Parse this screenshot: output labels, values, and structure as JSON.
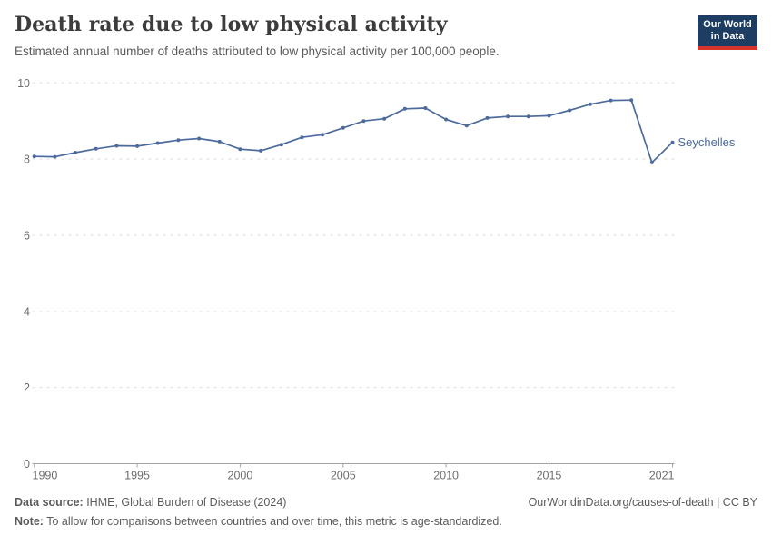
{
  "header": {
    "title": "Death rate due to low physical activity",
    "subtitle": "Estimated annual number of deaths attributed to low physical activity per 100,000 people.",
    "logo": {
      "line1": "Our World",
      "line2": "in Data",
      "bg_color": "#1d3d63",
      "stripe_color": "#d7342e"
    }
  },
  "chart_data": {
    "type": "line",
    "title": "Death rate due to low physical activity",
    "entity": "Seychelles",
    "xlim": [
      1990,
      2021
    ],
    "ylim": [
      0,
      10
    ],
    "x_ticks": [
      1990,
      1995,
      2000,
      2005,
      2010,
      2015,
      2021
    ],
    "y_ticks": [
      0,
      2,
      4,
      6,
      8,
      10
    ],
    "grid": "horizontal-dashed",
    "legend_position": "end-of-line-label",
    "line_color": "#4c6a9c",
    "series": [
      {
        "name": "Seychelles",
        "x": [
          1990,
          1991,
          1992,
          1993,
          1994,
          1995,
          1996,
          1997,
          1998,
          1999,
          2000,
          2001,
          2002,
          2003,
          2004,
          2005,
          2006,
          2007,
          2008,
          2009,
          2010,
          2011,
          2012,
          2013,
          2014,
          2015,
          2016,
          2017,
          2018,
          2019,
          2020,
          2021
        ],
        "values": [
          8.07,
          8.06,
          8.17,
          8.27,
          8.35,
          8.34,
          8.42,
          8.5,
          8.54,
          8.46,
          8.26,
          8.22,
          8.38,
          8.57,
          8.64,
          8.82,
          9.0,
          9.06,
          9.32,
          9.34,
          9.04,
          8.88,
          9.08,
          9.12,
          9.12,
          9.14,
          9.28,
          9.44,
          9.54,
          9.55,
          7.91,
          8.44
        ]
      }
    ]
  },
  "footer": {
    "source_label": "Data source:",
    "source_text": " IHME, Global Burden of Disease (2024)",
    "citation": "OurWorldinData.org/causes-of-death | CC BY",
    "note_label": "Note:",
    "note_text": " To allow for comparisons between countries and over time, this metric is age-standardized."
  }
}
